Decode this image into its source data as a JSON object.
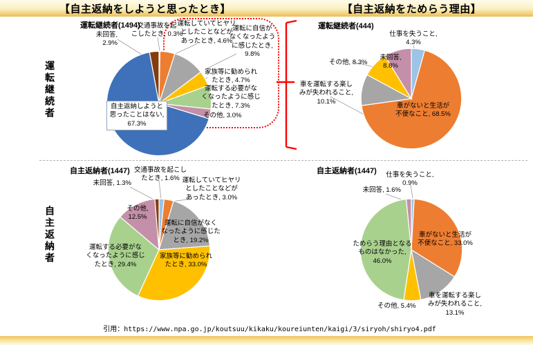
{
  "header": {
    "left_title": "【自主返納をしようと思ったとき】",
    "right_title": "【自主返納をためらう理由】"
  },
  "row_labels": {
    "top": "運転継続者",
    "bottom": "自主返納者"
  },
  "footer": {
    "citation": "引用：https://www.npa.go.jp/koutsuu/kikaku/koureiunten/kaigi/3/siryoh/shiryo4.pdf"
  },
  "colors": {
    "blue": "#3E71B9",
    "orange": "#ED7D31",
    "gray": "#A6A6A6",
    "gold": "#FFC000",
    "green": "#A9D18E",
    "rose": "#C48FA8",
    "brown": "#843C0C",
    "light_blue": "#9DC3E6",
    "accent_red": "#FF0000",
    "band_gold": "#EFC35C"
  },
  "chart_data": [
    {
      "type": "pie",
      "title": "運転継続者(1494)",
      "legend_position": "none",
      "slices": [
        {
          "name": "交通事故を起こしたとき",
          "value": 0.3,
          "color": "#9DC3E6",
          "label": "交通事故を起\nこしたとき, 0.3%"
        },
        {
          "name": "運転していてヒヤリとしたことなどがあったとき",
          "value": 4.6,
          "color": "#ED7D31",
          "label": "運転していてヒヤリ\nとしたことなどが\nあったとき, 4.6%"
        },
        {
          "name": "運転に自信がなくなったように感じたとき",
          "value": 9.8,
          "color": "#A6A6A6",
          "label": "運転に自信が\nなくなったよう\nに感じたとき,\n9.8%"
        },
        {
          "name": "家族等に勧められたとき",
          "value": 4.7,
          "color": "#FFC000",
          "label": "家族等に勧められ\nたとき, 4.7%"
        },
        {
          "name": "運転する必要がなくなったように感じたとき",
          "value": 7.3,
          "color": "#A9D18E",
          "label": "運転する必要がな\nくなったように感じ\nたとき, 7.3%"
        },
        {
          "name": "その他",
          "value": 3.0,
          "color": "#C48FA8",
          "label": "その他, 3.0%"
        },
        {
          "name": "自主返納しようと思ったことはない",
          "value": 67.3,
          "color": "#3E71B9",
          "label": "自主返納しようと\n思ったことはない,\n67.3%"
        },
        {
          "name": "未回答",
          "value": 2.9,
          "color": "#843C0C",
          "label": "未回答,\n2.9%"
        }
      ]
    },
    {
      "type": "pie",
      "title": "運転継続者(444)",
      "legend_position": "none",
      "slices": [
        {
          "name": "仕事を失うこと",
          "value": 4.3,
          "color": "#9DC3E6",
          "label": "仕事を失うこと,\n4.3%"
        },
        {
          "name": "車がないと生活が不便なこと",
          "value": 68.5,
          "color": "#ED7D31",
          "label": "車がないと生活が\n不便なこと, 68.5%"
        },
        {
          "name": "車を運転する楽しみが失われること",
          "value": 10.1,
          "color": "#A6A6A6",
          "label": "車を運転する楽し\nみが失われること,\n10.1%"
        },
        {
          "name": "その他",
          "value": 8.3,
          "color": "#FFC000",
          "label": "その他, 8.3%"
        },
        {
          "name": "未回答",
          "value": 8.8,
          "color": "#C48FA8",
          "label": "未回答,\n8.8%"
        }
      ]
    },
    {
      "type": "pie",
      "title": "自主返納者(1447)",
      "legend_position": "none",
      "slices": [
        {
          "name": "交通事故を起こしたとき",
          "value": 1.6,
          "color": "#9DC3E6",
          "label": "交通事故を起こし\nたとき, 1.6%"
        },
        {
          "name": "運転していてヒヤリとしたことなどがあったとき",
          "value": 3.0,
          "color": "#ED7D31",
          "label": "運転していてヒヤリ\nとしたことなどが\nあったとき, 3.0%"
        },
        {
          "name": "運転に自信がなくなったように感じたとき",
          "value": 19.2,
          "color": "#A6A6A6",
          "label": "運転に自信がなく\nなったように感じた\nとき, 19.2%"
        },
        {
          "name": "家族等に勧められたとき",
          "value": 33.0,
          "color": "#FFC000",
          "label": "家族等に勧められ\nたとき, 33.0%"
        },
        {
          "name": "運転する必要がなくなったように感じたとき",
          "value": 29.4,
          "color": "#A9D18E",
          "label": "運転する必要がな\nくなったように感じ\nたとき, 29.4%"
        },
        {
          "name": "その他",
          "value": 12.5,
          "color": "#C48FA8",
          "label": "その他,\n12.5%"
        },
        {
          "name": "未回答",
          "value": 1.3,
          "color": "#843C0C",
          "label": "未回答, 1.3%"
        }
      ]
    },
    {
      "type": "pie",
      "title": "自主返納者(1447)",
      "legend_position": "none",
      "slices": [
        {
          "name": "仕事を失うこと",
          "value": 0.9,
          "color": "#9DC3E6",
          "label": "仕事を失うこと,\n0.9%"
        },
        {
          "name": "車がないと生活が不便なこと",
          "value": 33.0,
          "color": "#ED7D31",
          "label": "車がないと生活が\n不便なこと, 33.0%"
        },
        {
          "name": "車を運転する楽しみが失われること",
          "value": 13.1,
          "color": "#A6A6A6",
          "label": "車を運転する楽し\nみが失われること,\n13.1%"
        },
        {
          "name": "その他",
          "value": 5.4,
          "color": "#FFC000",
          "label": "その他, 5.4%"
        },
        {
          "name": "ためらう理由となるものはなかった",
          "value": 46.0,
          "color": "#A9D18E",
          "label": "ためらう理由となる\nものはなかった,\n46.0%"
        },
        {
          "name": "未回答",
          "value": 1.6,
          "color": "#C48FA8",
          "label": "未回答, 1.6%"
        }
      ]
    }
  ]
}
